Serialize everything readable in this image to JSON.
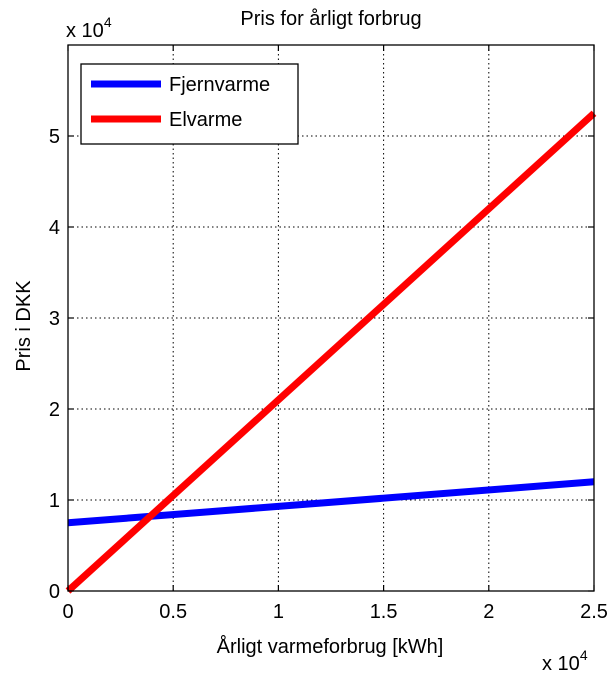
{
  "chart_data": {
    "type": "line",
    "title": "Pris for årligt forbrug",
    "xlabel": "Årligt varmeforbrug [kWh]",
    "ylabel": "Pris i DKK",
    "x_multiplier": {
      "base": "x 10",
      "exp": "4"
    },
    "y_multiplier": {
      "base": "x 10",
      "exp": "4"
    },
    "xlim": [
      0,
      25000
    ],
    "ylim": [
      0,
      60000
    ],
    "x_ticks": [
      0,
      5000,
      10000,
      15000,
      20000,
      25000
    ],
    "x_tick_labels": [
      "0",
      "0.5",
      "1",
      "1.5",
      "2",
      "2.5"
    ],
    "y_ticks": [
      0,
      10000,
      20000,
      30000,
      40000,
      50000
    ],
    "y_tick_labels": [
      "0",
      "1",
      "2",
      "3",
      "4",
      "5"
    ],
    "grid": true,
    "legend_position": "top-left",
    "series": [
      {
        "name": "Fjernvarme",
        "color": "#0000ff",
        "x": [
          0,
          25000
        ],
        "y": [
          7500,
          12000
        ]
      },
      {
        "name": "Elvarme",
        "color": "#ff0000",
        "x": [
          0,
          25000
        ],
        "y": [
          0,
          52500
        ]
      }
    ]
  }
}
